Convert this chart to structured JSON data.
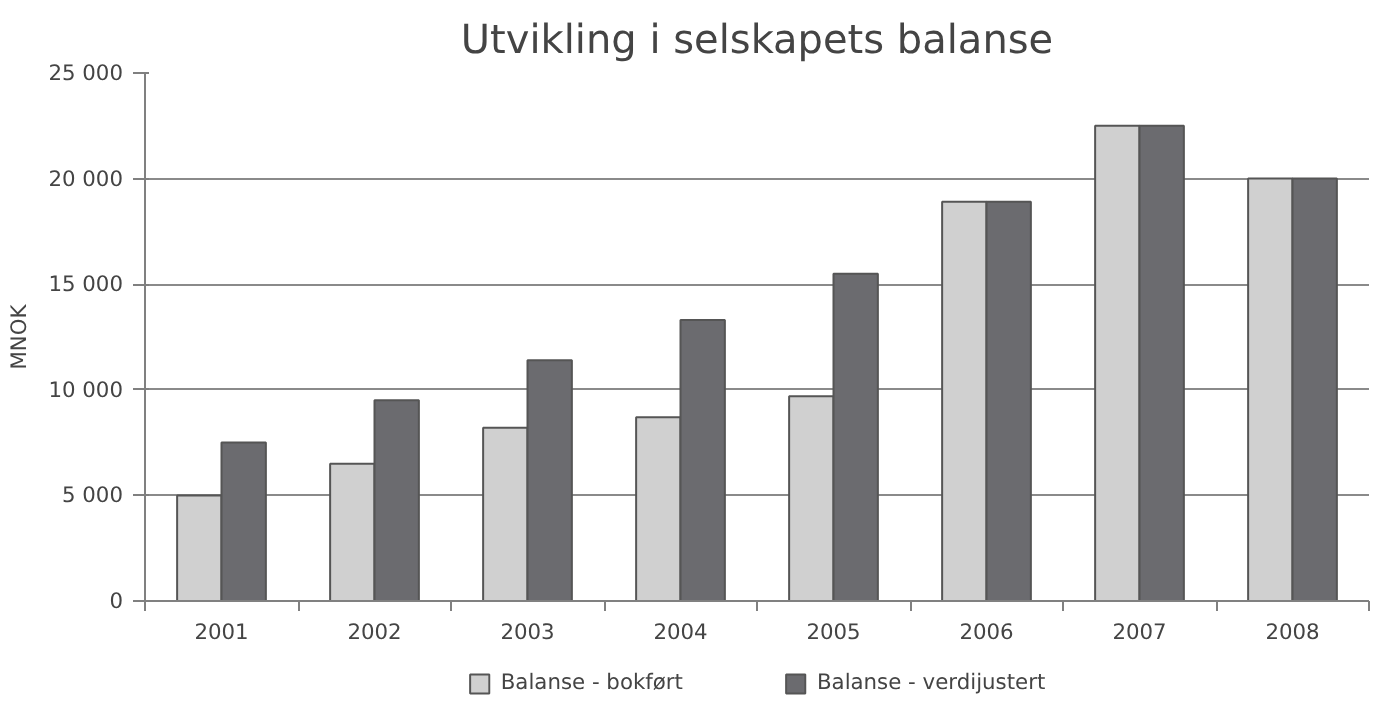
{
  "chart_data": {
    "type": "bar",
    "title": "Utvikling i selskapets balanse",
    "ylabel": "MNOK",
    "categories": [
      "2001",
      "2002",
      "2003",
      "2004",
      "2005",
      "2006",
      "2007",
      "2008"
    ],
    "series": [
      {
        "name": "Balanse - bokført",
        "color": "#d0d0d0",
        "values": [
          5000,
          6500,
          8200,
          8700,
          9700,
          18900,
          22500,
          20000
        ]
      },
      {
        "name": "Balanse - verdijustert",
        "color": "#6b6b6f",
        "values": [
          7500,
          9500,
          11400,
          13300,
          15500,
          18900,
          22500,
          20000
        ]
      }
    ],
    "ylim": [
      0,
      25000
    ],
    "yticks": [
      0,
      {
        "value": 5000,
        "label": "5 000"
      },
      {
        "value": 10000,
        "label": "10 000"
      },
      {
        "value": 15000,
        "label": "15 000"
      },
      {
        "value": 20000,
        "label": "20 000"
      },
      {
        "value": 25000,
        "label": "25 000"
      }
    ],
    "grid": "y",
    "legend": "bottom"
  }
}
